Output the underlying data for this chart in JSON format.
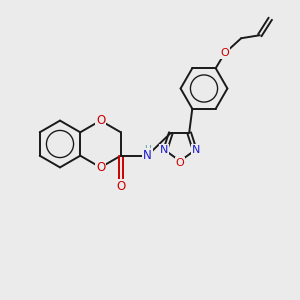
{
  "bg_color": "#ebebeb",
  "bond_color": "#1a1a1a",
  "oxygen_color": "#cc0000",
  "nitrogen_color": "#1a1acc",
  "nh_color": "#4e9999",
  "line_width": 1.4,
  "font_size": 8.5,
  "fig_w": 3.0,
  "fig_h": 3.0,
  "dpi": 100,
  "xlim": [
    0,
    10
  ],
  "ylim": [
    0,
    10
  ]
}
